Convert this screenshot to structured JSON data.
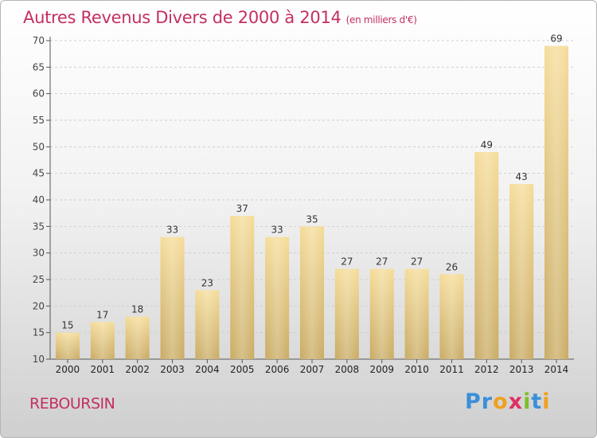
{
  "header": {
    "title": "Autres Revenus Divers de 2000 à 2014",
    "subtitle": "(en milliers d'€)"
  },
  "footer": {
    "commune": "REBOURSIN",
    "logo": "Proxiti",
    "logo_letters": [
      {
        "char": "P",
        "color": "#3a8fd8"
      },
      {
        "char": "r",
        "color": "#3a8fd8"
      },
      {
        "char": "o",
        "color": "#f0a020"
      },
      {
        "char": "x",
        "color": "#e03060"
      },
      {
        "char": "i",
        "color": "#7cbf2a"
      },
      {
        "char": "t",
        "color": "#3a8fd8"
      },
      {
        "char": "i",
        "color": "#f0a020"
      }
    ]
  },
  "chart_data": {
    "type": "bar",
    "categories": [
      "2000",
      "2001",
      "2002",
      "2003",
      "2004",
      "2005",
      "2006",
      "2007",
      "2008",
      "2009",
      "2010",
      "2011",
      "2012",
      "2013",
      "2014"
    ],
    "values": [
      15,
      17,
      18,
      33,
      23,
      37,
      33,
      35,
      27,
      27,
      27,
      26,
      49,
      43,
      69
    ],
    "ylim": [
      10,
      70
    ],
    "yticks": [
      10,
      15,
      20,
      25,
      30,
      35,
      40,
      45,
      50,
      55,
      60,
      65,
      70
    ],
    "grid": true,
    "bar_color_top": "#f5dc98",
    "bar_color_bottom": "#c9ab64"
  }
}
